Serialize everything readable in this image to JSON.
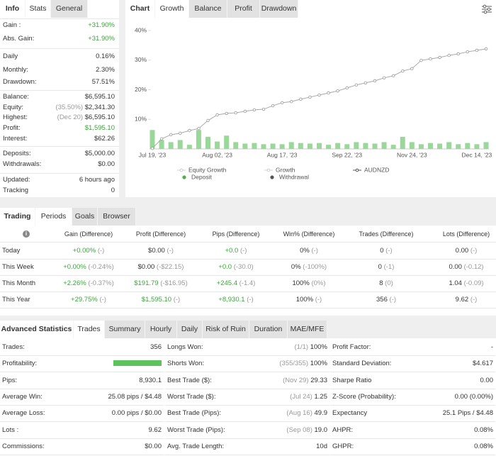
{
  "stats_panel": {
    "tabs": [
      "Info",
      "Stats",
      "General"
    ],
    "rows": [
      {
        "label": "Gain :",
        "value": "+31.90%",
        "color": "#3aa63a"
      },
      {
        "label": "Abs. Gain:",
        "value": "+31.90%",
        "color": "#3aa63a"
      },
      {
        "label": "Daily",
        "value": "0.16%"
      },
      {
        "label": "Monthly:",
        "value": "2.30%"
      },
      {
        "label": "Drawdown:",
        "value": "57.51%"
      },
      {
        "label": "Balance:",
        "value": "$6,595.10"
      },
      {
        "label": "Equity:",
        "note": "(35.50%)",
        "value": "$2,341.30"
      },
      {
        "label": "Highest:",
        "note": "(Dec 20)",
        "value": "$6,595.10"
      },
      {
        "label": "Profit:",
        "value": "$1,595.10",
        "color": "#3aa63a"
      },
      {
        "label": "Interest:",
        "value": "$62.26"
      },
      {
        "label": "Deposits:",
        "value": "$5,000.00"
      },
      {
        "label": "Withdrawals:",
        "value": "$0.00"
      },
      {
        "label": "Updated:",
        "value": "6 hours ago"
      },
      {
        "label": "Tracking",
        "value": "0"
      }
    ]
  },
  "chart_tabs": [
    "Chart",
    "Growth",
    "Balance",
    "Profit",
    "Drawdown"
  ],
  "chart_data": {
    "type": "line",
    "categories": [
      "Jul 19, '23",
      null,
      null,
      null,
      null,
      null,
      null,
      "Aug 02, '23",
      null,
      null,
      null,
      null,
      null,
      null,
      "Aug 17, '23",
      null,
      null,
      null,
      null,
      null,
      null,
      "Sep 22, '23",
      null,
      null,
      null,
      null,
      null,
      null,
      "Nov 24, '23",
      null,
      null,
      null,
      null,
      null,
      null,
      "Dec 14, '23",
      null
    ],
    "series": [
      {
        "name": "AUDNZD",
        "color": "#a8a8a8",
        "values": [
          0.2,
          3.4,
          4.8,
          5.3,
          6.2,
          6.9,
          9.6,
          11.5,
          12.0,
          12.2,
          12.7,
          13.2,
          13.4,
          14.6,
          15.6,
          16.0,
          16.8,
          17.5,
          18.2,
          18.9,
          19.6,
          20.6,
          21.6,
          22.3,
          23.0,
          24.0,
          24.7,
          26.3,
          27.1,
          29.9,
          30.4,
          30.9,
          31.6,
          32.1,
          32.8,
          33.3,
          33.8
        ]
      }
    ],
    "bars": {
      "color": "#9ad89a",
      "values": [
        6.4,
        3.0,
        2.3,
        3.0,
        1.4,
        6.4,
        4.1,
        2.5,
        4.5,
        2.3,
        1.8,
        2.0,
        1.6,
        1.8,
        1.6,
        2.3,
        2.0,
        1.8,
        2.0,
        1.4,
        2.0,
        1.6,
        2.3,
        2.0,
        1.8,
        2.3,
        1.4,
        4.1,
        2.3,
        1.6,
        2.0,
        1.8,
        2.3,
        1.6,
        2.0,
        1.6,
        2.3
      ]
    },
    "ylim": [
      0,
      40
    ],
    "yticks": [
      {
        "value": 10,
        "label": "10%"
      },
      {
        "value": 20,
        "label": "20%"
      },
      {
        "value": 30,
        "label": "30%"
      },
      {
        "value": 40,
        "label": "40%"
      }
    ],
    "legend": [
      {
        "name": "Equity Growth",
        "color": "#d0d0d0",
        "marker": "line"
      },
      {
        "name": "Growth",
        "color": "#d0d0d0",
        "marker": "line"
      },
      {
        "name": "AUDNZD",
        "color": "#555555",
        "marker": "line"
      },
      {
        "name": "Deposit",
        "color": "#4caf50",
        "marker": "dot"
      },
      {
        "name": "Withdrawal",
        "color": "#555555",
        "marker": "dot"
      }
    ]
  },
  "trading": {
    "tabs": [
      "Trading",
      "Periods",
      "Goals",
      "Browser"
    ],
    "headers": [
      "Gain (Difference)",
      "Profit (Difference)",
      "Pips (Difference)",
      "Win% (Difference)",
      "Trades (Difference)",
      "Lots (Difference)"
    ],
    "rows": [
      {
        "label": "Today",
        "cells": [
          {
            "v": "+0.00%",
            "d": "(-)",
            "color": "#3aa63a"
          },
          {
            "v": "$0.00",
            "d": "(-)"
          },
          {
            "v": "+0.0",
            "d": "(-)",
            "color": "#3aa63a"
          },
          {
            "v": "0%",
            "d": "(-)"
          },
          {
            "v": "0",
            "d": "(-)"
          },
          {
            "v": "0.00",
            "d": "(-)"
          }
        ]
      },
      {
        "label": "This Week",
        "cells": [
          {
            "v": "+0.00%",
            "d": "(-0.24%)",
            "color": "#3aa63a"
          },
          {
            "v": "$0.00",
            "d": "(-$22.15)"
          },
          {
            "v": "+0.0",
            "d": "(-30.0)",
            "color": "#3aa63a"
          },
          {
            "v": "0%",
            "d": "(-100%)"
          },
          {
            "v": "0",
            "d": "(-1)"
          },
          {
            "v": "0.00",
            "d": "(-0.12)"
          }
        ]
      },
      {
        "label": "This Month",
        "cells": [
          {
            "v": "+2.26%",
            "d": "(-0.37%)",
            "color": "#3aa63a"
          },
          {
            "v": "$191.79",
            "d": "(-$16.95)",
            "color": "#3aa63a"
          },
          {
            "v": "+245.4",
            "d": "(-1.4)",
            "color": "#3aa63a"
          },
          {
            "v": "100%",
            "d": "(0%)"
          },
          {
            "v": "8",
            "d": "(0)"
          },
          {
            "v": "1.04",
            "d": "(-0.09)"
          }
        ]
      },
      {
        "label": "This Year",
        "cells": [
          {
            "v": "+29.75%",
            "d": "(-)",
            "color": "#3aa63a"
          },
          {
            "v": "$1,595.10",
            "d": "(-)",
            "color": "#3aa63a"
          },
          {
            "v": "+8,930.1",
            "d": "(-)",
            "color": "#3aa63a"
          },
          {
            "v": "100%",
            "d": "(-)"
          },
          {
            "v": "356",
            "d": "(-)"
          },
          {
            "v": "9.62",
            "d": "(-)"
          }
        ]
      }
    ]
  },
  "advanced": {
    "tabs": [
      "Advanced Statistics",
      "Trades",
      "Summary",
      "Hourly",
      "Daily",
      "Risk of Ruin",
      "Duration",
      "MAE/MFE"
    ],
    "columns": [
      [
        {
          "label": "Trades:",
          "value": "356"
        },
        {
          "label": "Profitability:",
          "bar_color": "#5cc45c"
        },
        {
          "label": "Pips:",
          "value": "8,930.1"
        },
        {
          "label": "Average Win:",
          "value": "25.08 pips / $4.48"
        },
        {
          "label": "Average Loss:",
          "value": "0.00 pips / $0.00"
        },
        {
          "label": "Lots :",
          "value": "9.62"
        },
        {
          "label": "Commissions:",
          "value": "$0.00"
        }
      ],
      [
        {
          "label": "Longs Won:",
          "note": "(1/1)",
          "value": "100%"
        },
        {
          "label": "Shorts Won:",
          "note": "(355/355)",
          "value": "100%"
        },
        {
          "label": "Best Trade ($):",
          "note": "(Nov 29)",
          "value": "29.33"
        },
        {
          "label": "Worst Trade ($):",
          "note": "(Jul 24)",
          "value": "1.25"
        },
        {
          "label": "Best Trade (Pips):",
          "note": "(Aug 16)",
          "value": "49.9"
        },
        {
          "label": "Worst Trade (Pips):",
          "note": "(Sep 08)",
          "value": "19.0"
        },
        {
          "label": "Avg. Trade Length:",
          "value": "10d"
        }
      ],
      [
        {
          "label": "Profit Factor:",
          "value": "-"
        },
        {
          "label": "Standard Deviation:",
          "value": "$4.617"
        },
        {
          "label": "Sharpe Ratio",
          "value": "0.00"
        },
        {
          "label": "Z-Score (Probability):",
          "value": "0.00 (0.00%)"
        },
        {
          "label": "Expectancy",
          "value": "25.1 Pips / $4.48"
        },
        {
          "label": "AHPR:",
          "value": "0.08%"
        },
        {
          "label": "GHPR:",
          "value": "0.08%"
        }
      ]
    ]
  }
}
